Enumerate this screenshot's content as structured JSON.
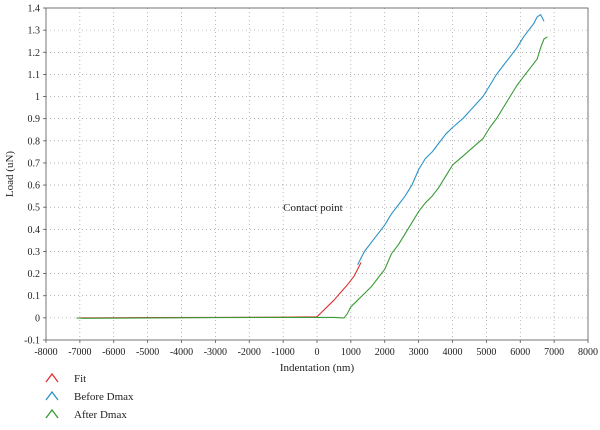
{
  "chart_data": {
    "type": "line",
    "xlabel": "Indentation (nm)",
    "ylabel": "Load (uN)",
    "xlim": [
      -8000,
      8000
    ],
    "ylim": [
      -0.1,
      1.4
    ],
    "xticks": [
      -8000,
      -7000,
      -6000,
      -5000,
      -4000,
      -3000,
      -2000,
      -1000,
      0,
      1000,
      2000,
      3000,
      4000,
      5000,
      6000,
      7000,
      8000
    ],
    "yticks": [
      -0.1,
      0,
      0.1,
      0.2,
      0.3,
      0.4,
      0.5,
      0.6,
      0.7,
      0.8,
      0.9,
      1,
      1.1,
      1.2,
      1.3,
      1.4
    ],
    "grid": true,
    "legend_position": "bottom-left",
    "annotations": [
      {
        "text": "Contact point",
        "x": 0,
        "y": 0.5
      }
    ],
    "series": [
      {
        "name": "Fit",
        "color": "#e03030",
        "x": [
          -7000,
          -5000,
          -3000,
          -1000,
          0,
          100,
          300,
          500,
          700,
          900,
          1100,
          1200,
          1300
        ],
        "y": [
          0,
          0.001,
          0.002,
          0.003,
          0.005,
          0.02,
          0.05,
          0.08,
          0.115,
          0.15,
          0.19,
          0.22,
          0.25
        ]
      },
      {
        "name": "Before Dmax",
        "color": "#2b93c8",
        "x": [
          1200,
          1400,
          1600,
          1800,
          2000,
          2200,
          2400,
          2600,
          2800,
          3000,
          3200,
          3400,
          3600,
          3800,
          4000,
          4300,
          4600,
          4900,
          5100,
          5300,
          5500,
          5700,
          5900,
          6100,
          6300,
          6400,
          6500,
          6600,
          6700
        ],
        "y": [
          0.24,
          0.3,
          0.34,
          0.38,
          0.42,
          0.47,
          0.51,
          0.55,
          0.6,
          0.67,
          0.72,
          0.75,
          0.79,
          0.83,
          0.86,
          0.9,
          0.95,
          1.0,
          1.05,
          1.1,
          1.14,
          1.18,
          1.22,
          1.27,
          1.31,
          1.33,
          1.36,
          1.37,
          1.34
        ]
      },
      {
        "name": "After Dmax",
        "color": "#3a9a35",
        "x": [
          -7100,
          -6900,
          -5000,
          -3000,
          -1000,
          0,
          500,
          800,
          900,
          1000,
          1200,
          1400,
          1600,
          1800,
          2000,
          2200,
          2400,
          2600,
          2800,
          3000,
          3200,
          3400,
          3600,
          3800,
          4000,
          4300,
          4600,
          4900,
          5100,
          5300,
          5500,
          5700,
          5900,
          6100,
          6300,
          6500,
          6600,
          6700,
          6800
        ],
        "y": [
          0.0,
          -0.002,
          0.0,
          0.001,
          0.002,
          0.002,
          0.002,
          0.0,
          0.02,
          0.05,
          0.08,
          0.11,
          0.14,
          0.18,
          0.22,
          0.29,
          0.33,
          0.38,
          0.43,
          0.48,
          0.52,
          0.55,
          0.59,
          0.64,
          0.69,
          0.73,
          0.77,
          0.81,
          0.86,
          0.9,
          0.95,
          1.0,
          1.05,
          1.09,
          1.13,
          1.17,
          1.22,
          1.26,
          1.27
        ]
      }
    ]
  }
}
